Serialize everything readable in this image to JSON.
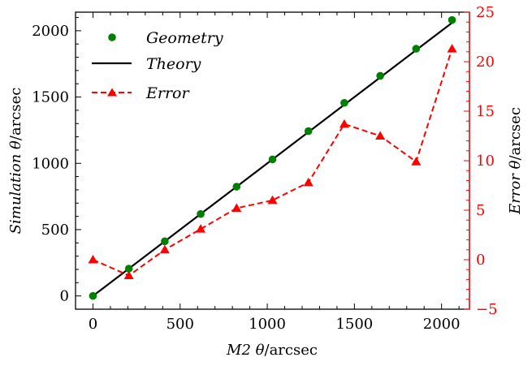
{
  "chart_data": {
    "type": "line",
    "title": "",
    "xlabel": "M2 θ/arcsec",
    "xlabel_parts": {
      "italic": "M2 θ",
      "plain": "/arcsec"
    },
    "ylabel_left": "Simulation θ/arcsec",
    "ylabel_left_parts": {
      "italic": "Simulation θ",
      "plain": "/arcsec"
    },
    "ylabel_right": "Error θ/arcsec",
    "ylabel_right_parts": {
      "italic": "Error θ",
      "plain": "/arcsec"
    },
    "xlim": [
      -100,
      2160
    ],
    "ylim_left": [
      -100,
      2140
    ],
    "ylim_right": [
      -5,
      25
    ],
    "x_ticks": [
      0,
      500,
      1000,
      1500,
      2000
    ],
    "y_left_ticks": [
      0,
      500,
      1000,
      1500,
      2000
    ],
    "y_right_ticks": [
      -5,
      0,
      5,
      10,
      15,
      20,
      25
    ],
    "legend_position": "top-left",
    "series": [
      {
        "name": "Geometry",
        "kind": "scatter",
        "axis": "left",
        "color": "#008000",
        "x": [
          0,
          206,
          412,
          618,
          824,
          1030,
          1236,
          1442,
          1648,
          1854,
          2060
        ],
        "y": [
          0,
          206,
          412,
          618,
          824,
          1030,
          1243,
          1456,
          1660,
          1864,
          2081
        ]
      },
      {
        "name": "Theory",
        "kind": "line",
        "axis": "left",
        "color": "#000000",
        "x": [
          0,
          2060
        ],
        "y": [
          0,
          2060
        ]
      },
      {
        "name": "Error",
        "kind": "dashed-line-triangle",
        "axis": "right",
        "color": "#ff0000",
        "x": [
          0,
          206,
          412,
          618,
          824,
          1030,
          1236,
          1442,
          1648,
          1854,
          2060
        ],
        "y": [
          0.0,
          -1.6,
          1.0,
          3.1,
          5.2,
          6.0,
          7.8,
          13.7,
          12.5,
          9.9,
          21.3
        ]
      }
    ]
  }
}
